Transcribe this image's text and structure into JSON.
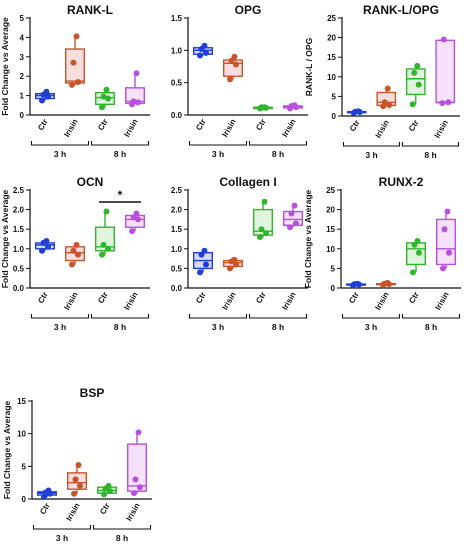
{
  "groups": [
    "Ctr",
    "Irisin",
    "Ctr",
    "Irisin"
  ],
  "time_labels": [
    "3 h",
    "8 h"
  ],
  "colors": {
    "ctr_3h": "#1f3fd8",
    "irisin_3h": "#c8552a",
    "ctr_8h": "#2fb62c",
    "irisin_8h": "#b84fe0",
    "fill_ctr_3h": "#b9bbe8",
    "fill_irisin_3h": "#f1c2c2",
    "fill_ctr_8h": "#c8ecc2",
    "fill_irisin_8h": "#ecc8f4"
  },
  "chart_data": [
    {
      "type": "box",
      "title": "RANK-L",
      "ylabel": "Fold Change vs Average",
      "ylim": [
        0,
        5
      ],
      "yticks": [
        0,
        1,
        2,
        3,
        4,
        5
      ],
      "categories": [
        "Ctr",
        "Irisin",
        "Ctr",
        "Irisin"
      ],
      "time_groups": [
        "3 h",
        "8 h"
      ],
      "boxes": [
        {
          "min": 0.75,
          "q1": 0.85,
          "median": 1.0,
          "q3": 1.1,
          "max": 1.2,
          "points": [
            0.75,
            0.95,
            1.05,
            1.2
          ]
        },
        {
          "min": 1.55,
          "q1": 1.65,
          "median": 1.75,
          "q3": 3.4,
          "max": 4.05,
          "points": [
            1.55,
            1.7,
            2.7,
            4.05
          ]
        },
        {
          "min": 0.4,
          "q1": 0.55,
          "median": 0.9,
          "q3": 1.15,
          "max": 1.3,
          "points": [
            0.4,
            0.85,
            0.95,
            1.3
          ]
        },
        {
          "min": 0.55,
          "q1": 0.6,
          "median": 0.7,
          "q3": 1.4,
          "max": 2.15,
          "points": [
            0.55,
            0.65,
            0.7,
            2.15
          ]
        }
      ],
      "significance": []
    },
    {
      "type": "box",
      "title": "OPG",
      "ylabel": "",
      "ylim": [
        0,
        1.5
      ],
      "yticks": [
        0,
        0.5,
        1.0,
        1.5
      ],
      "categories": [
        "Ctr",
        "Irisin",
        "Ctr",
        "Irisin"
      ],
      "time_groups": [
        "3 h",
        "8 h"
      ],
      "boxes": [
        {
          "min": 0.92,
          "q1": 0.94,
          "median": 1.0,
          "q3": 1.04,
          "max": 1.07,
          "points": [
            0.92,
            0.96,
            1.02,
            1.07
          ]
        },
        {
          "min": 0.55,
          "q1": 0.6,
          "median": 0.8,
          "q3": 0.85,
          "max": 0.9,
          "points": [
            0.55,
            0.78,
            0.84,
            0.9
          ]
        },
        {
          "min": 0.1,
          "q1": 0.1,
          "median": 0.11,
          "q3": 0.12,
          "max": 0.12,
          "points": [
            0.1,
            0.11,
            0.12,
            0.12
          ]
        },
        {
          "min": 0.1,
          "q1": 0.11,
          "median": 0.13,
          "q3": 0.14,
          "max": 0.15,
          "points": [
            0.1,
            0.12,
            0.14,
            0.15
          ]
        }
      ],
      "significance": []
    },
    {
      "type": "box",
      "title": "RANK-L/OPG",
      "ylabel": "RANK-L / OPG",
      "ylim": [
        0,
        25
      ],
      "yticks": [
        0,
        5,
        10,
        15,
        20,
        25
      ],
      "categories": [
        "Ctr",
        "Irisin",
        "Ctr",
        "Irisin"
      ],
      "time_groups": [
        "3 h",
        "8 h"
      ],
      "boxes": [
        {
          "min": 0.8,
          "q1": 0.9,
          "median": 1.0,
          "q3": 1.1,
          "max": 1.2,
          "points": [
            0.8,
            1.0,
            1.1,
            1.2
          ]
        },
        {
          "min": 2.5,
          "q1": 2.7,
          "median": 3.5,
          "q3": 6.0,
          "max": 7.0,
          "points": [
            2.5,
            2.8,
            3.5,
            7.0
          ]
        },
        {
          "min": 3.0,
          "q1": 5.5,
          "median": 9.5,
          "q3": 12.0,
          "max": 12.8,
          "points": [
            3.0,
            8.0,
            11.0,
            12.8
          ]
        },
        {
          "min": 3.3,
          "q1": 3.4,
          "median": 3.5,
          "q3": 19.3,
          "max": 19.5,
          "points": [
            3.3,
            3.5,
            19.5
          ]
        }
      ],
      "significance": []
    },
    {
      "type": "box",
      "title": "OCN",
      "ylabel": "Fold Change vs Average",
      "ylim": [
        0,
        2.5
      ],
      "yticks": [
        0,
        0.5,
        1.0,
        1.5,
        2.0,
        2.5
      ],
      "categories": [
        "Ctr",
        "Irisin",
        "Ctr",
        "Irisin"
      ],
      "time_groups": [
        "3 h",
        "8 h"
      ],
      "boxes": [
        {
          "min": 0.95,
          "q1": 1.0,
          "median": 1.1,
          "q3": 1.15,
          "max": 1.2,
          "points": [
            0.95,
            1.05,
            1.15,
            1.2
          ]
        },
        {
          "min": 0.6,
          "q1": 0.7,
          "median": 0.9,
          "q3": 1.05,
          "max": 1.1,
          "points": [
            0.6,
            0.85,
            0.95,
            1.1
          ]
        },
        {
          "min": 0.85,
          "q1": 0.95,
          "median": 1.05,
          "q3": 1.55,
          "max": 1.95,
          "points": [
            0.85,
            1.0,
            1.1,
            1.95
          ]
        },
        {
          "min": 1.45,
          "q1": 1.55,
          "median": 1.75,
          "q3": 1.85,
          "max": 1.9,
          "points": [
            1.45,
            1.75,
            1.8,
            1.9
          ]
        }
      ],
      "significance": [
        {
          "from": 2,
          "to": 3,
          "label": "*"
        }
      ]
    },
    {
      "type": "box",
      "title": "Collagen I",
      "ylabel": "",
      "ylim": [
        0,
        2.5
      ],
      "yticks": [
        0,
        0.5,
        1.0,
        1.5,
        2.0,
        2.5
      ],
      "categories": [
        "Ctr",
        "Irisin",
        "Ctr",
        "Irisin"
      ],
      "time_groups": [
        "3 h",
        "8 h"
      ],
      "boxes": [
        {
          "min": 0.4,
          "q1": 0.5,
          "median": 0.7,
          "q3": 0.9,
          "max": 0.95,
          "points": [
            0.4,
            0.6,
            0.85,
            0.95
          ]
        },
        {
          "min": 0.5,
          "q1": 0.55,
          "median": 0.65,
          "q3": 0.7,
          "max": 0.72,
          "points": [
            0.5,
            0.6,
            0.68,
            0.72
          ]
        },
        {
          "min": 1.3,
          "q1": 1.35,
          "median": 1.45,
          "q3": 2.0,
          "max": 2.2,
          "points": [
            1.3,
            1.4,
            1.5,
            2.2
          ]
        },
        {
          "min": 1.55,
          "q1": 1.6,
          "median": 1.75,
          "q3": 1.95,
          "max": 2.1,
          "points": [
            1.55,
            1.65,
            1.9,
            2.1
          ]
        }
      ],
      "significance": []
    },
    {
      "type": "box",
      "title": "RUNX-2",
      "ylabel": "Fold Change vs Average",
      "ylim": [
        0,
        25
      ],
      "yticks": [
        0,
        5,
        10,
        15,
        20,
        25
      ],
      "categories": [
        "Ctr",
        "Irisin",
        "Ctr",
        "Irisin"
      ],
      "time_groups": [
        "3 h",
        "8 h"
      ],
      "boxes": [
        {
          "min": 0.7,
          "q1": 0.8,
          "median": 0.9,
          "q3": 1.0,
          "max": 1.1,
          "points": [
            0.7,
            0.9,
            1.0,
            1.1
          ]
        },
        {
          "min": 0.8,
          "q1": 0.9,
          "median": 1.0,
          "q3": 1.1,
          "max": 1.3,
          "points": [
            0.8,
            1.0,
            1.1,
            1.3
          ]
        },
        {
          "min": 4.0,
          "q1": 6.0,
          "median": 10.0,
          "q3": 11.5,
          "max": 12.0,
          "points": [
            4.0,
            9.0,
            11.0,
            12.0
          ]
        },
        {
          "min": 5.0,
          "q1": 6.0,
          "median": 10.0,
          "q3": 17.5,
          "max": 19.5,
          "points": [
            5.0,
            9.0,
            15.0,
            19.5
          ]
        }
      ],
      "significance": []
    },
    {
      "type": "box",
      "title": "BSP",
      "ylabel": "Fold Change vs Average",
      "ylim": [
        0,
        15
      ],
      "yticks": [
        0,
        5,
        10,
        15
      ],
      "categories": [
        "Ctr",
        "Irisin",
        "Ctr",
        "Irisin"
      ],
      "time_groups": [
        "3 h",
        "8 h"
      ],
      "boxes": [
        {
          "min": 0.3,
          "q1": 0.6,
          "median": 0.9,
          "q3": 1.1,
          "max": 1.3,
          "points": [
            0.3,
            0.8,
            1.0,
            1.3
          ]
        },
        {
          "min": 0.8,
          "q1": 1.5,
          "median": 2.5,
          "q3": 4.0,
          "max": 5.2,
          "points": [
            0.8,
            2.0,
            3.0,
            5.2
          ]
        },
        {
          "min": 0.7,
          "q1": 0.9,
          "median": 1.3,
          "q3": 1.8,
          "max": 2.0,
          "points": [
            0.7,
            1.2,
            1.6,
            2.0
          ]
        },
        {
          "min": 0.9,
          "q1": 1.2,
          "median": 2.0,
          "q3": 8.4,
          "max": 10.2,
          "points": [
            0.9,
            1.8,
            3.0,
            10.2
          ]
        }
      ],
      "significance": []
    }
  ]
}
